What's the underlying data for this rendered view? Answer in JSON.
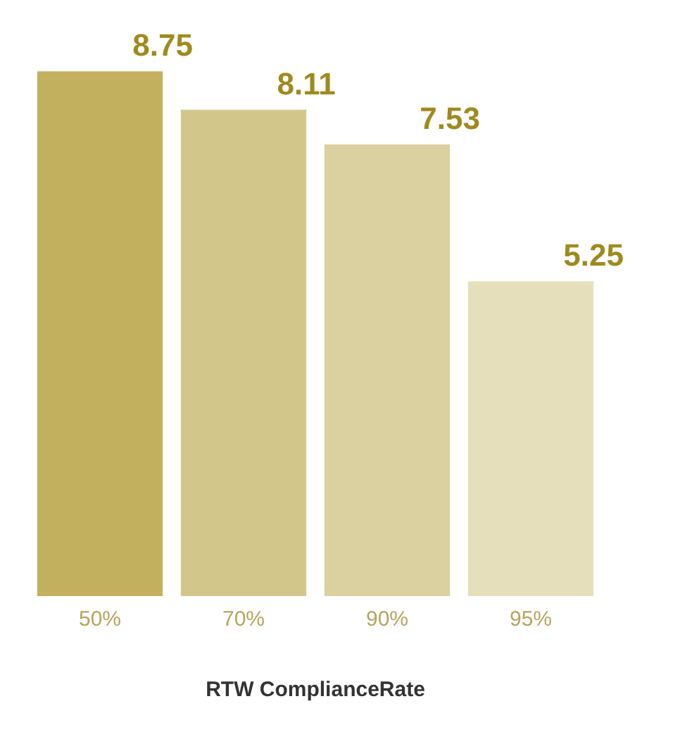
{
  "chart_data": {
    "type": "bar",
    "xlabel": "RTW ComplianceRate",
    "categories": [
      "50%",
      "70%",
      "90%",
      "95%"
    ],
    "values": [
      8.75,
      8.11,
      7.53,
      5.25
    ],
    "colors": [
      "#c2b05f",
      "#d3c68a",
      "#dbd09f",
      "#e6dfbb"
    ],
    "data_labels": true,
    "grid": false,
    "legend": false
  }
}
